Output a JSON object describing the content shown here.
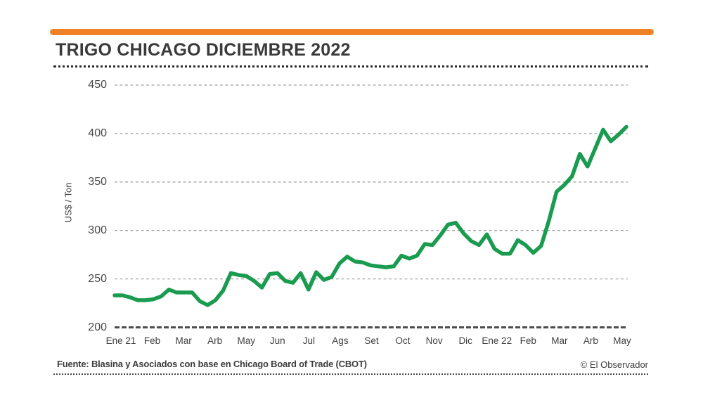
{
  "header": {
    "title": "TRIGO CHICAGO DICIEMBRE 2022",
    "accent_color": "#EF8227"
  },
  "chart_data": {
    "type": "line",
    "title": "TRIGO CHICAGO DICIEMBRE 2022",
    "xlabel": "",
    "ylabel": "US$ / Ton",
    "ylim": [
      200,
      450
    ],
    "yticks": [
      450,
      400,
      350,
      300,
      250,
      200
    ],
    "grid": "horizontal-dashed",
    "legend": "none",
    "x_labels": [
      "Ene 21",
      "Feb",
      "Mar",
      "Arb",
      "May",
      "Jun",
      "Jul",
      "Ags",
      "Set",
      "Oct",
      "Nov",
      "Dic",
      "Ene 22",
      "Feb",
      "Mar",
      "Arb",
      "May"
    ],
    "series": [
      {
        "name": "Trigo Chicago Diciembre 2022",
        "color": "#1A9B50",
        "values": [
          233,
          233,
          231,
          228,
          228,
          229,
          232,
          239,
          236,
          236,
          236,
          227,
          223,
          228,
          238,
          256,
          254,
          253,
          248,
          241,
          255,
          256,
          248,
          246,
          256,
          239,
          257,
          249,
          252,
          266,
          273,
          268,
          267,
          264,
          263,
          262,
          263,
          274,
          271,
          274,
          286,
          285,
          295,
          306,
          308,
          297,
          289,
          285,
          296,
          281,
          276,
          276,
          290,
          285,
          277,
          284,
          310,
          340,
          347,
          356,
          379,
          366,
          385,
          404,
          392,
          399,
          407
        ]
      }
    ]
  },
  "footer": {
    "source": "Fuente: Blasina y Asociados con base en Chicago Board of Trade (CBOT)",
    "credit": "© El Observador"
  }
}
